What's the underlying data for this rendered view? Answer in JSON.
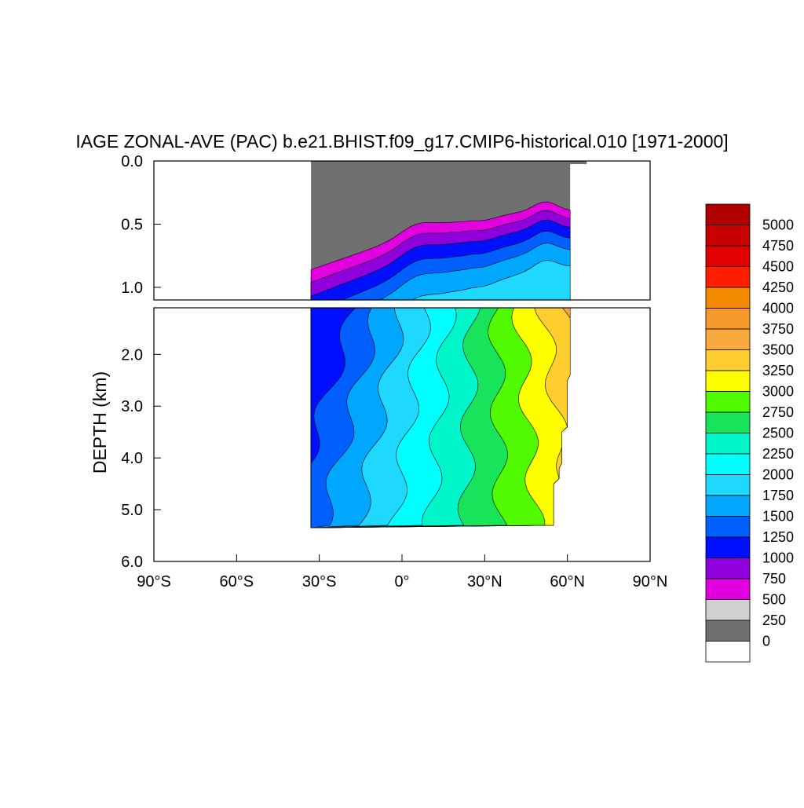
{
  "chart_data": {
    "type": "heatmap",
    "title": "IAGE ZONAL-AVE (PAC) b.e21.BHIST.f09_g17.CMIP6-historical.010 [1971-2000]",
    "xlabel": "",
    "ylabel": "DEPTH (km)",
    "x_ticks": [
      "90°S",
      "60°S",
      "30°S",
      "0°",
      "30°N",
      "60°N",
      "90°N"
    ],
    "x_tick_values": [
      -90,
      -60,
      -30,
      0,
      30,
      60,
      90
    ],
    "xlim": [
      -90,
      90
    ],
    "upper_panel": {
      "ylim": [
        0,
        1.1
      ],
      "y_tick_values": [
        0.0,
        0.5,
        1.0
      ],
      "y_ticks": [
        "0.0",
        "0.5",
        "1.0"
      ]
    },
    "lower_panel": {
      "ylim": [
        1.1,
        6.0
      ],
      "y_tick_values": [
        2.0,
        3.0,
        4.0,
        5.0,
        6.0
      ],
      "y_ticks": [
        "2.0",
        "3.0",
        "4.0",
        "5.0",
        "6.0"
      ]
    },
    "colorbar": {
      "labels": [
        "5000",
        "4750",
        "4500",
        "4250",
        "4000",
        "3750",
        "3500",
        "3250",
        "3000",
        "2750",
        "2500",
        "2250",
        "2000",
        "1750",
        "1500",
        "1250",
        "1000",
        "750",
        "500",
        "250",
        "0"
      ],
      "colors": [
        "#b10000",
        "#c90000",
        "#e30000",
        "#ff1f00",
        "#f48a00",
        "#f7992a",
        "#f9a93e",
        "#fdce2e",
        "#ffff00",
        "#52fa00",
        "#18e45b",
        "#00f5c9",
        "#00ffff",
        "#1ed8ff",
        "#00a7ff",
        "#0060ff",
        "#0010ff",
        "#9000dc",
        "#e300e0",
        "#d0d0d0",
        "#707070",
        "#ffffff"
      ]
    },
    "data_extent": {
      "lat_min": -33,
      "lat_max_surface": 67,
      "lat_max_ocean": 61,
      "bottom_depth_km": 5.35
    },
    "contour_levels": [
      250,
      500,
      750,
      1000,
      1250,
      1500,
      1750,
      2000,
      2250,
      2500,
      2750,
      3000,
      3250,
      3500,
      3750,
      4000
    ]
  }
}
